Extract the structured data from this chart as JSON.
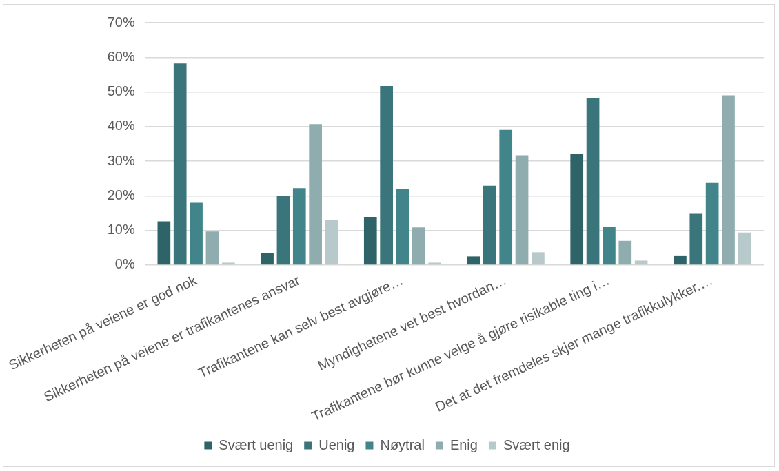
{
  "chart_data": {
    "type": "bar",
    "categories": [
      "Sikkerheten på veiene er god nok",
      "Sikkerheten på veiene er trafikantenes ansvar",
      "Trafikantene kan selv best avgjøre…",
      "Myndighetene vet best hvordan…",
      "Trafikantene bør kunne velge å gjøre risikable ting i…",
      "Det at det fremdeles skjer mange trafikkulykker,…"
    ],
    "series": [
      {
        "name": "Svært uenig",
        "color": "#2e6468",
        "values": [
          12.6,
          3.5,
          13.9,
          2.5,
          32.1,
          2.6
        ]
      },
      {
        "name": "Uenig",
        "color": "#3a757b",
        "values": [
          58.2,
          19.9,
          51.7,
          22.9,
          48.3,
          14.8
        ]
      },
      {
        "name": "Nøytral",
        "color": "#41858a",
        "values": [
          18.0,
          22.2,
          21.9,
          39.0,
          11.0,
          23.7
        ]
      },
      {
        "name": "Enig",
        "color": "#8fadaf",
        "values": [
          9.7,
          40.7,
          10.9,
          31.7,
          7.0,
          49.0
        ]
      },
      {
        "name": "Svært enig",
        "color": "#b8c9cc",
        "values": [
          0.7,
          13.0,
          0.7,
          3.7,
          1.3,
          9.4
        ]
      }
    ],
    "ylim": [
      0,
      70
    ],
    "yticks": [
      {
        "value": 0,
        "label": "0%"
      },
      {
        "value": 10,
        "label": "10%"
      },
      {
        "value": 20,
        "label": "20%"
      },
      {
        "value": 30,
        "label": "30%"
      },
      {
        "value": 40,
        "label": "40%"
      },
      {
        "value": 50,
        "label": "50%"
      },
      {
        "value": 60,
        "label": "60%"
      },
      {
        "value": 70,
        "label": "70%"
      }
    ],
    "grid": "y",
    "legend": "bottom"
  }
}
